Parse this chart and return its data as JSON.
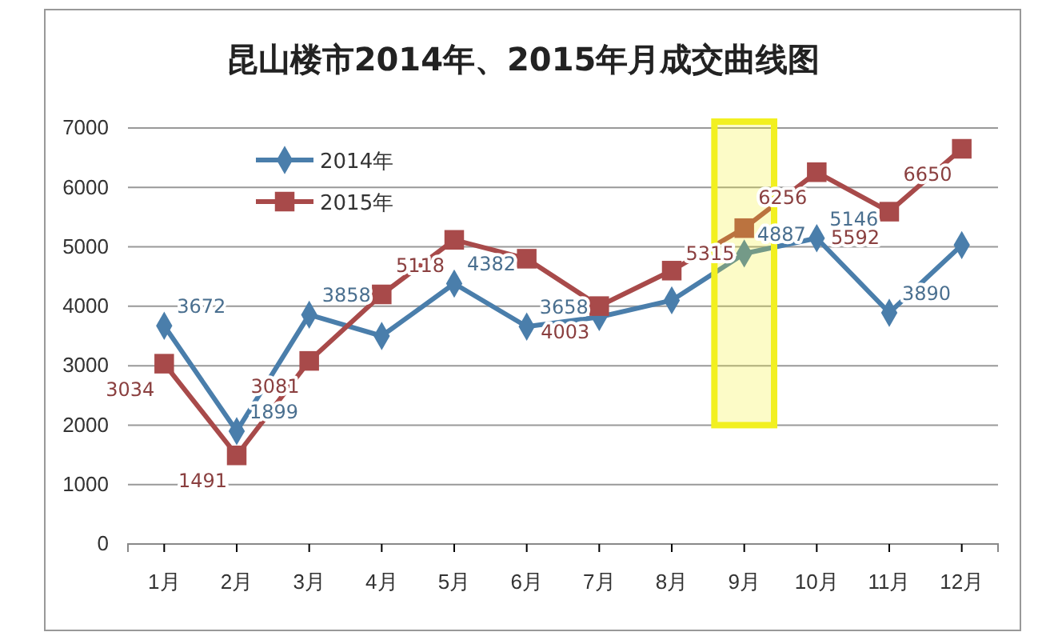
{
  "chart_data": {
    "type": "line",
    "title": "昆山楼市2014年、2015年月成交曲线图",
    "categories": [
      "1月",
      "2月",
      "3月",
      "4月",
      "5月",
      "6月",
      "7月",
      "8月",
      "9月",
      "10月",
      "11月",
      "12月"
    ],
    "series": [
      {
        "name": "2014年",
        "color": "#4a7eab",
        "marker": "diamond",
        "values": [
          3672,
          1899,
          3858,
          3500,
          4382,
          3658,
          3820,
          4100,
          4887,
          5146,
          3890,
          5030
        ],
        "value_labels": [
          "3672",
          "1899",
          "3858",
          null,
          "4382",
          "3658",
          null,
          null,
          "4887",
          "5146",
          "3890",
          null
        ]
      },
      {
        "name": "2015年",
        "color": "#a84a4a",
        "marker": "square",
        "values": [
          3034,
          1491,
          3081,
          4200,
          5118,
          4800,
          4003,
          4600,
          5315,
          6256,
          5592,
          6650
        ],
        "value_labels": [
          "3034",
          "1491",
          "3081",
          null,
          "5118",
          null,
          "4003",
          null,
          "5315",
          "6256",
          "5592",
          "6650"
        ]
      }
    ],
    "ylim": [
      0,
      7000
    ],
    "yticks": [
      0,
      1000,
      2000,
      3000,
      4000,
      5000,
      6000,
      7000
    ],
    "grid": "y",
    "legend": "top left",
    "bands": [
      {
        "axis": "x",
        "from": "9月",
        "to": "9月",
        "color": "#f2f020"
      }
    ]
  }
}
